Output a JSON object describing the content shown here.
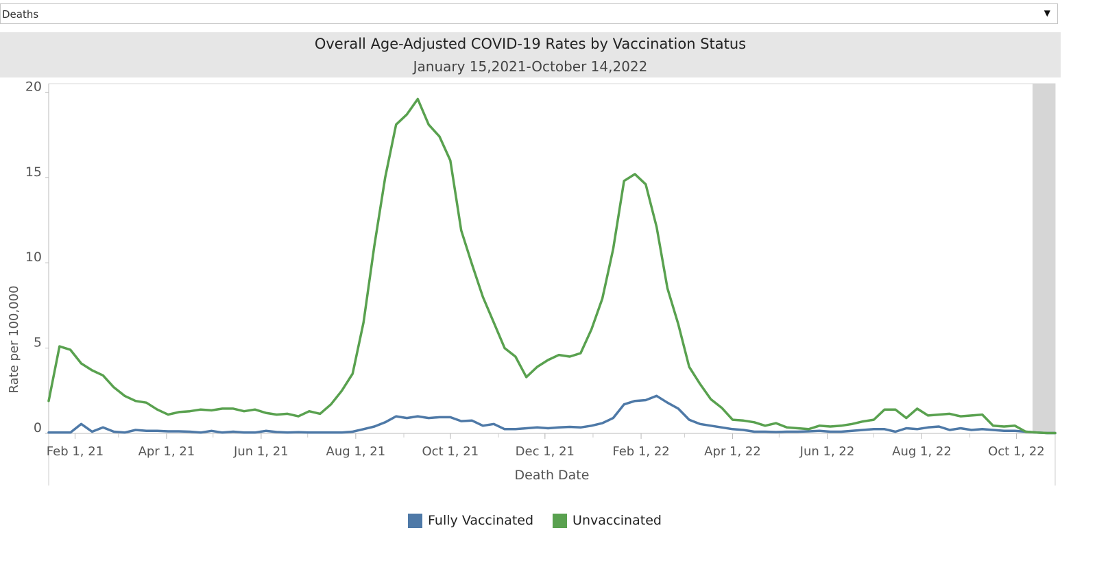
{
  "filter": {
    "value": "Deaths"
  },
  "chart_data": {
    "type": "line",
    "title": "Overall Age-Adjusted COVID-19 Rates by Vaccination Status",
    "subtitle": "January 15,2021-October 14,2022",
    "xlabel": "Death Date",
    "ylabel": "Rate per 100,000",
    "ylim": [
      0,
      20.5
    ],
    "yticks": [
      0,
      5,
      10,
      15,
      20
    ],
    "xlim": [
      "2021-01-15",
      "2022-10-26"
    ],
    "xticks": [
      {
        "date": "2021-02-01",
        "label": "Feb 1, 21"
      },
      {
        "date": "2021-04-01",
        "label": "Apr 1, 21"
      },
      {
        "date": "2021-06-01",
        "label": "Jun 1, 21"
      },
      {
        "date": "2021-08-01",
        "label": "Aug 1, 21"
      },
      {
        "date": "2021-10-01",
        "label": "Oct 1, 21"
      },
      {
        "date": "2021-12-01",
        "label": "Dec 1, 21"
      },
      {
        "date": "2022-02-01",
        "label": "Feb 1, 22"
      },
      {
        "date": "2022-04-01",
        "label": "Apr 1, 22"
      },
      {
        "date": "2022-06-01",
        "label": "Jun 1, 22"
      },
      {
        "date": "2022-08-01",
        "label": "Aug 1, 22"
      },
      {
        "date": "2022-10-01",
        "label": "Oct 1, 22"
      }
    ],
    "grid": false,
    "legend_position": "bottom",
    "series": [
      {
        "name": "Fully Vaccinated",
        "color": "#4e79a7",
        "points": [
          [
            "2021-01-15",
            0.05
          ],
          [
            "2021-01-22",
            0.05
          ],
          [
            "2021-01-29",
            0.05
          ],
          [
            "2021-02-05",
            0.55
          ],
          [
            "2021-02-12",
            0.1
          ],
          [
            "2021-02-19",
            0.35
          ],
          [
            "2021-02-26",
            0.1
          ],
          [
            "2021-03-05",
            0.05
          ],
          [
            "2021-03-12",
            0.2
          ],
          [
            "2021-03-19",
            0.15
          ],
          [
            "2021-03-26",
            0.15
          ],
          [
            "2021-04-02",
            0.12
          ],
          [
            "2021-04-09",
            0.12
          ],
          [
            "2021-04-16",
            0.1
          ],
          [
            "2021-04-23",
            0.05
          ],
          [
            "2021-04-30",
            0.15
          ],
          [
            "2021-05-07",
            0.05
          ],
          [
            "2021-05-14",
            0.1
          ],
          [
            "2021-05-21",
            0.05
          ],
          [
            "2021-05-28",
            0.05
          ],
          [
            "2021-06-04",
            0.15
          ],
          [
            "2021-06-11",
            0.08
          ],
          [
            "2021-06-18",
            0.05
          ],
          [
            "2021-06-25",
            0.07
          ],
          [
            "2021-07-02",
            0.05
          ],
          [
            "2021-07-09",
            0.05
          ],
          [
            "2021-07-16",
            0.05
          ],
          [
            "2021-07-23",
            0.05
          ],
          [
            "2021-07-30",
            0.1
          ],
          [
            "2021-08-06",
            0.25
          ],
          [
            "2021-08-13",
            0.4
          ],
          [
            "2021-08-20",
            0.65
          ],
          [
            "2021-08-27",
            1.0
          ],
          [
            "2021-09-03",
            0.9
          ],
          [
            "2021-09-10",
            1.0
          ],
          [
            "2021-09-17",
            0.9
          ],
          [
            "2021-09-24",
            0.95
          ],
          [
            "2021-10-01",
            0.95
          ],
          [
            "2021-10-08",
            0.72
          ],
          [
            "2021-10-15",
            0.75
          ],
          [
            "2021-10-22",
            0.45
          ],
          [
            "2021-10-29",
            0.55
          ],
          [
            "2021-11-05",
            0.25
          ],
          [
            "2021-11-12",
            0.25
          ],
          [
            "2021-11-19",
            0.3
          ],
          [
            "2021-11-26",
            0.35
          ],
          [
            "2021-12-03",
            0.3
          ],
          [
            "2021-12-10",
            0.35
          ],
          [
            "2021-12-17",
            0.38
          ],
          [
            "2021-12-24",
            0.35
          ],
          [
            "2021-12-31",
            0.45
          ],
          [
            "2022-01-07",
            0.6
          ],
          [
            "2022-01-14",
            0.9
          ],
          [
            "2022-01-21",
            1.7
          ],
          [
            "2022-01-28",
            1.9
          ],
          [
            "2022-02-04",
            1.95
          ],
          [
            "2022-02-11",
            2.2
          ],
          [
            "2022-02-18",
            1.8
          ],
          [
            "2022-02-25",
            1.45
          ],
          [
            "2022-03-04",
            0.8
          ],
          [
            "2022-03-11",
            0.55
          ],
          [
            "2022-03-18",
            0.45
          ],
          [
            "2022-03-25",
            0.35
          ],
          [
            "2022-04-01",
            0.25
          ],
          [
            "2022-04-08",
            0.2
          ],
          [
            "2022-04-15",
            0.1
          ],
          [
            "2022-04-22",
            0.1
          ],
          [
            "2022-04-29",
            0.08
          ],
          [
            "2022-05-06",
            0.1
          ],
          [
            "2022-05-13",
            0.1
          ],
          [
            "2022-05-20",
            0.12
          ],
          [
            "2022-05-27",
            0.15
          ],
          [
            "2022-06-03",
            0.1
          ],
          [
            "2022-06-10",
            0.1
          ],
          [
            "2022-06-17",
            0.15
          ],
          [
            "2022-06-24",
            0.2
          ],
          [
            "2022-07-01",
            0.25
          ],
          [
            "2022-07-08",
            0.25
          ],
          [
            "2022-07-15",
            0.1
          ],
          [
            "2022-07-22",
            0.3
          ],
          [
            "2022-07-29",
            0.25
          ],
          [
            "2022-08-05",
            0.35
          ],
          [
            "2022-08-12",
            0.4
          ],
          [
            "2022-08-19",
            0.2
          ],
          [
            "2022-08-26",
            0.3
          ],
          [
            "2022-09-02",
            0.2
          ],
          [
            "2022-09-09",
            0.25
          ],
          [
            "2022-09-16",
            0.2
          ],
          [
            "2022-09-23",
            0.15
          ],
          [
            "2022-09-30",
            0.15
          ],
          [
            "2022-10-07",
            0.1
          ],
          [
            "2022-10-14",
            0.05
          ],
          [
            "2022-10-21",
            0.02
          ],
          [
            "2022-10-26",
            0.02
          ]
        ]
      },
      {
        "name": "Unvaccinated",
        "color": "#59a14f",
        "points": [
          [
            "2021-01-15",
            1.9
          ],
          [
            "2021-01-22",
            5.1
          ],
          [
            "2021-01-29",
            4.9
          ],
          [
            "2021-02-05",
            4.1
          ],
          [
            "2021-02-12",
            3.7
          ],
          [
            "2021-02-19",
            3.4
          ],
          [
            "2021-02-26",
            2.7
          ],
          [
            "2021-03-05",
            2.2
          ],
          [
            "2021-03-12",
            1.9
          ],
          [
            "2021-03-19",
            1.8
          ],
          [
            "2021-03-26",
            1.4
          ],
          [
            "2021-04-02",
            1.1
          ],
          [
            "2021-04-09",
            1.25
          ],
          [
            "2021-04-16",
            1.3
          ],
          [
            "2021-04-23",
            1.4
          ],
          [
            "2021-04-30",
            1.35
          ],
          [
            "2021-05-07",
            1.45
          ],
          [
            "2021-05-14",
            1.45
          ],
          [
            "2021-05-21",
            1.3
          ],
          [
            "2021-05-28",
            1.4
          ],
          [
            "2021-06-04",
            1.2
          ],
          [
            "2021-06-11",
            1.1
          ],
          [
            "2021-06-18",
            1.15
          ],
          [
            "2021-06-25",
            1.0
          ],
          [
            "2021-07-02",
            1.3
          ],
          [
            "2021-07-09",
            1.15
          ],
          [
            "2021-07-16",
            1.7
          ],
          [
            "2021-07-23",
            2.5
          ],
          [
            "2021-07-30",
            3.5
          ],
          [
            "2021-08-06",
            6.5
          ],
          [
            "2021-08-13",
            11.0
          ],
          [
            "2021-08-20",
            15.0
          ],
          [
            "2021-08-27",
            18.1
          ],
          [
            "2021-09-03",
            18.7
          ],
          [
            "2021-09-10",
            19.6
          ],
          [
            "2021-09-17",
            18.1
          ],
          [
            "2021-09-24",
            17.4
          ],
          [
            "2021-10-01",
            16.0
          ],
          [
            "2021-10-08",
            11.9
          ],
          [
            "2021-10-15",
            9.9
          ],
          [
            "2021-10-22",
            8.0
          ],
          [
            "2021-10-29",
            6.5
          ],
          [
            "2021-11-05",
            5.0
          ],
          [
            "2021-11-12",
            4.5
          ],
          [
            "2021-11-19",
            3.3
          ],
          [
            "2021-11-26",
            3.9
          ],
          [
            "2021-12-03",
            4.3
          ],
          [
            "2021-12-10",
            4.6
          ],
          [
            "2021-12-17",
            4.5
          ],
          [
            "2021-12-24",
            4.7
          ],
          [
            "2021-12-31",
            6.1
          ],
          [
            "2022-01-07",
            7.9
          ],
          [
            "2022-01-14",
            10.8
          ],
          [
            "2022-01-21",
            14.8
          ],
          [
            "2022-01-28",
            15.2
          ],
          [
            "2022-02-04",
            14.6
          ],
          [
            "2022-02-11",
            12.1
          ],
          [
            "2022-02-18",
            8.5
          ],
          [
            "2022-02-25",
            6.4
          ],
          [
            "2022-03-04",
            3.9
          ],
          [
            "2022-03-11",
            2.9
          ],
          [
            "2022-03-18",
            2.0
          ],
          [
            "2022-03-25",
            1.5
          ],
          [
            "2022-04-01",
            0.8
          ],
          [
            "2022-04-08",
            0.75
          ],
          [
            "2022-04-15",
            0.65
          ],
          [
            "2022-04-22",
            0.45
          ],
          [
            "2022-04-29",
            0.6
          ],
          [
            "2022-05-06",
            0.35
          ],
          [
            "2022-05-13",
            0.3
          ],
          [
            "2022-05-20",
            0.25
          ],
          [
            "2022-05-27",
            0.45
          ],
          [
            "2022-06-03",
            0.4
          ],
          [
            "2022-06-10",
            0.45
          ],
          [
            "2022-06-17",
            0.55
          ],
          [
            "2022-06-24",
            0.7
          ],
          [
            "2022-07-01",
            0.8
          ],
          [
            "2022-07-08",
            1.4
          ],
          [
            "2022-07-15",
            1.4
          ],
          [
            "2022-07-22",
            0.9
          ],
          [
            "2022-07-29",
            1.45
          ],
          [
            "2022-08-05",
            1.05
          ],
          [
            "2022-08-12",
            1.1
          ],
          [
            "2022-08-19",
            1.15
          ],
          [
            "2022-08-26",
            1.0
          ],
          [
            "2022-09-02",
            1.05
          ],
          [
            "2022-09-09",
            1.1
          ],
          [
            "2022-09-16",
            0.45
          ],
          [
            "2022-09-23",
            0.4
          ],
          [
            "2022-09-30",
            0.45
          ],
          [
            "2022-10-07",
            0.1
          ],
          [
            "2022-10-14",
            0.05
          ],
          [
            "2022-10-21",
            0.02
          ],
          [
            "2022-10-26",
            0.02
          ]
        ]
      }
    ]
  }
}
